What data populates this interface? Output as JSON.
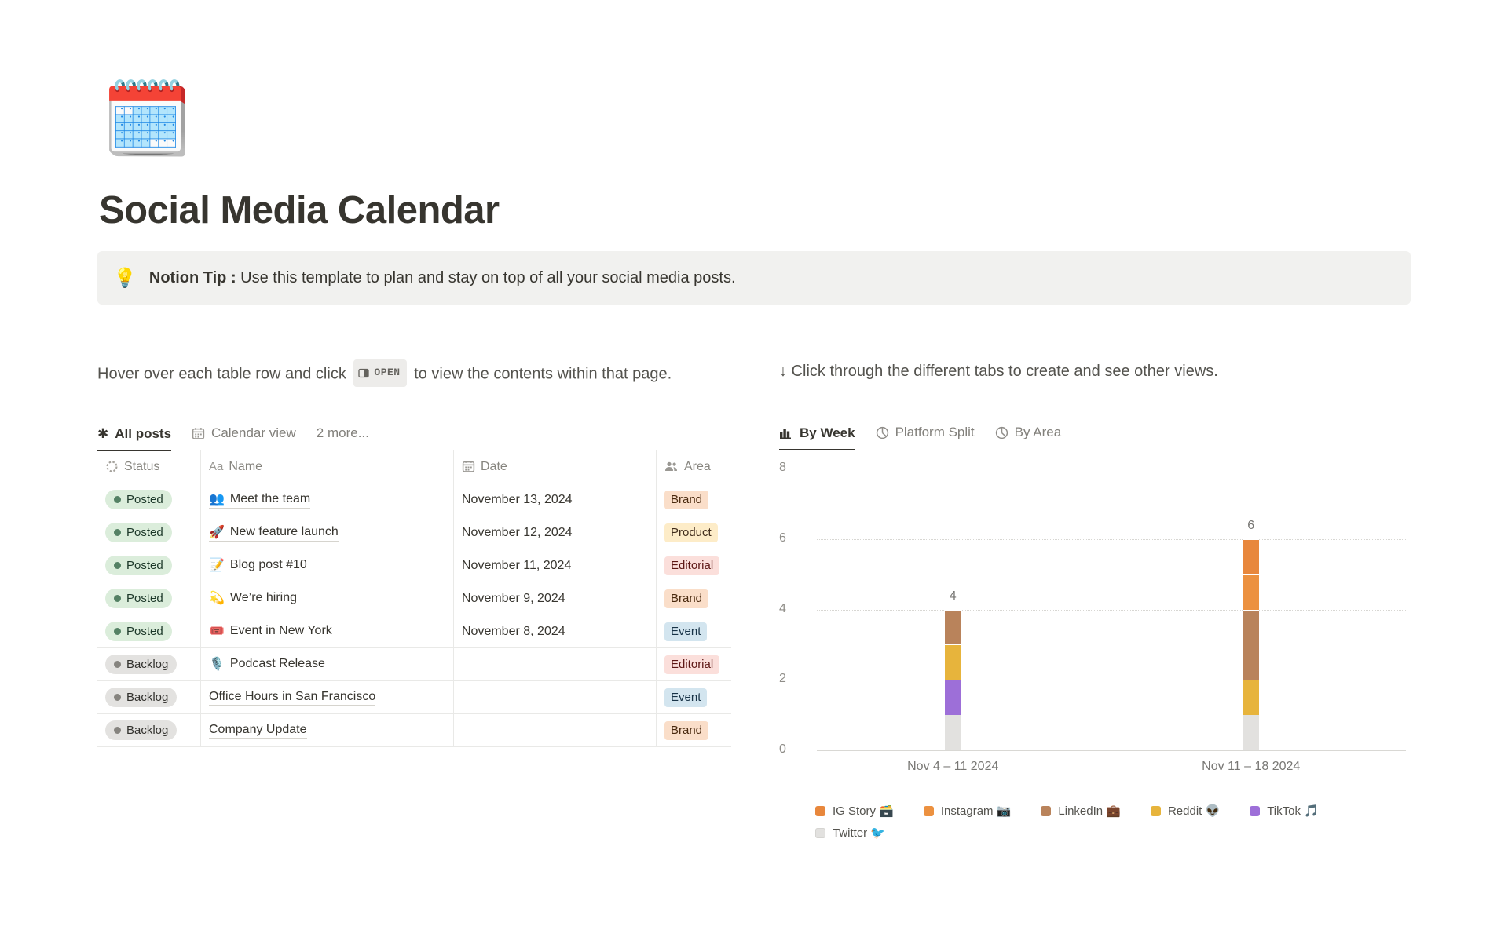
{
  "page": {
    "icon": "🗓️",
    "title": "Social Media Calendar",
    "callout": {
      "emoji": "💡",
      "bold": "Notion Tip :",
      "text": "Use this template to plan and stay on top of all your social media posts."
    }
  },
  "left": {
    "instruction_before": "Hover over each table row and click",
    "open_label": "OPEN",
    "instruction_after": "to view the contents within that page.",
    "tabs": [
      {
        "label": "All posts",
        "icon": "asterisk",
        "active": true
      },
      {
        "label": "Calendar view",
        "icon": "calendar",
        "active": false
      },
      {
        "label": "2 more...",
        "icon": "none",
        "active": false
      }
    ],
    "table": {
      "columns": [
        {
          "label": "Status",
          "icon": "status-spinner"
        },
        {
          "label": "Name",
          "icon": "aa"
        },
        {
          "label": "Date",
          "icon": "calendar"
        },
        {
          "label": "Area",
          "icon": "people"
        }
      ],
      "rows": [
        {
          "status": "Posted",
          "status_type": "posted",
          "emoji": "👥",
          "name": "Meet the team",
          "date": "November 13, 2024",
          "area": "Brand",
          "area_type": "brand"
        },
        {
          "status": "Posted",
          "status_type": "posted",
          "emoji": "🚀",
          "name": "New feature launch",
          "date": "November 12, 2024",
          "area": "Product",
          "area_type": "product"
        },
        {
          "status": "Posted",
          "status_type": "posted",
          "emoji": "📝",
          "name": "Blog post #10",
          "date": "November 11, 2024",
          "area": "Editorial",
          "area_type": "editorial"
        },
        {
          "status": "Posted",
          "status_type": "posted",
          "emoji": "💫",
          "name": "We’re hiring",
          "date": "November 9, 2024",
          "area": "Brand",
          "area_type": "brand"
        },
        {
          "status": "Posted",
          "status_type": "posted",
          "emoji": "🎟️",
          "name": "Event in New York",
          "date": "November 8, 2024",
          "area": "Event",
          "area_type": "event"
        },
        {
          "status": "Backlog",
          "status_type": "backlog",
          "emoji": "🎙️",
          "name": "Podcast Release",
          "date": "",
          "area": "Editorial",
          "area_type": "editorial"
        },
        {
          "status": "Backlog",
          "status_type": "backlog",
          "emoji": "",
          "name": "Office Hours in San Francisco",
          "date": "",
          "area": "Event",
          "area_type": "event"
        },
        {
          "status": "Backlog",
          "status_type": "backlog",
          "emoji": "",
          "name": "Company Update",
          "date": "",
          "area": "Brand",
          "area_type": "brand"
        }
      ]
    }
  },
  "right": {
    "instruction": "↓ Click through the different tabs to create and see other views.",
    "tabs": [
      {
        "label": "By Week",
        "icon": "bar-chart",
        "active": true
      },
      {
        "label": "Platform Split",
        "icon": "pie",
        "active": false
      },
      {
        "label": "By Area",
        "icon": "pie",
        "active": false
      }
    ]
  },
  "chart_data": {
    "type": "bar",
    "stacked": true,
    "categories": [
      "Nov 4 – 11 2024",
      "Nov 11 – 18 2024"
    ],
    "series": [
      {
        "name": "IG Story",
        "emoji": "🗃️",
        "color": "#E8873C",
        "values": [
          0,
          1
        ]
      },
      {
        "name": "Instagram",
        "emoji": "📷",
        "color": "#EC9140",
        "values": [
          0,
          1
        ]
      },
      {
        "name": "LinkedIn",
        "emoji": "💼",
        "color": "#B9835B",
        "values": [
          1,
          2
        ]
      },
      {
        "name": "Reddit",
        "emoji": "👽",
        "color": "#E7B43C",
        "values": [
          1,
          1
        ]
      },
      {
        "name": "TikTok",
        "emoji": "🎵",
        "color": "#9D6FD8",
        "values": [
          1,
          0
        ]
      },
      {
        "name": "Twitter",
        "emoji": "🐦",
        "color": "#E2E1DF",
        "values": [
          1,
          1
        ]
      }
    ],
    "totals": [
      4,
      6
    ],
    "ylim": [
      0,
      8
    ],
    "yticks": [
      0,
      2,
      4,
      6,
      8
    ],
    "title": "",
    "xlabel": "",
    "ylabel": "",
    "grid": "dotted-horizontal",
    "legend_position": "bottom"
  }
}
